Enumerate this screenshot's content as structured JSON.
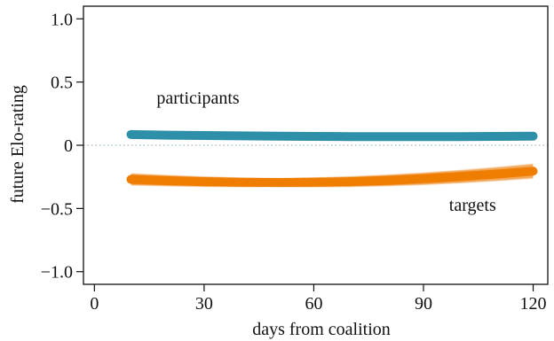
{
  "chart_data": {
    "type": "line",
    "xlabel": "days from coalition",
    "ylabel": "future Elo-rating",
    "xlim": [
      -3,
      124
    ],
    "ylim": [
      -1.1,
      1.1
    ],
    "x_ticks": [
      0,
      30,
      60,
      90,
      120
    ],
    "x_tick_labels": [
      "0",
      "30",
      "60",
      "90",
      "120"
    ],
    "y_ticks": [
      1.0,
      0.5,
      0,
      -0.5,
      -1.0
    ],
    "y_tick_labels": [
      "1.0",
      "0.5",
      "0",
      "−0.5",
      "−1.0"
    ],
    "reference_line": {
      "y": 0,
      "style": "dotted",
      "color": "#9fb7bf"
    },
    "grid": false,
    "series": [
      {
        "name": "participants",
        "color": "#2e8fa8",
        "x": [
          10,
          20,
          30,
          40,
          50,
          60,
          70,
          80,
          90,
          100,
          110,
          120
        ],
        "values": [
          0.085,
          0.08,
          0.077,
          0.074,
          0.072,
          0.07,
          0.069,
          0.068,
          0.068,
          0.069,
          0.07,
          0.072
        ],
        "spread": 0.04
      },
      {
        "name": "targets",
        "color": "#ef7d00",
        "x": [
          10,
          20,
          30,
          40,
          50,
          60,
          70,
          80,
          90,
          100,
          110,
          120
        ],
        "values": [
          -0.27,
          -0.28,
          -0.288,
          -0.293,
          -0.295,
          -0.293,
          -0.288,
          -0.278,
          -0.265,
          -0.248,
          -0.228,
          -0.205
        ],
        "spread": 0.11
      }
    ],
    "annotations": [
      {
        "text": "participants",
        "series": "participants"
      },
      {
        "text": "targets",
        "series": "targets"
      }
    ]
  }
}
